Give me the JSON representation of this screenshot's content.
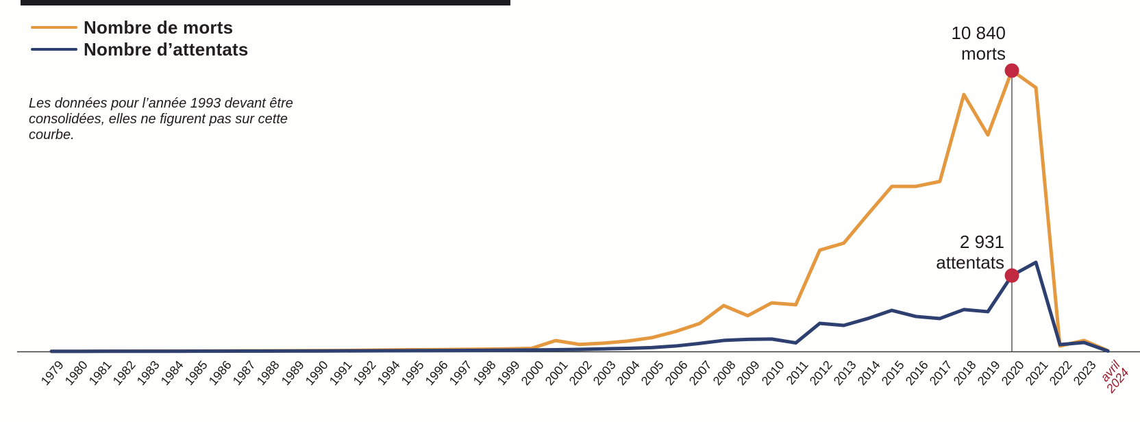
{
  "legend": {
    "items": [
      {
        "label": "Nombre de morts",
        "color": "#E4983F"
      },
      {
        "label": "Nombre d’attentats",
        "color": "#2E4070"
      }
    ]
  },
  "note": {
    "text": "Les données pour l’année 1993 devant être\nconsolidées, elles ne figurent pas sur cette\ncourbe."
  },
  "annotations": {
    "morts": {
      "text": "10 840\nmorts"
    },
    "attentats": {
      "text": "2 931\nattentats"
    }
  },
  "chart_data": {
    "type": "line",
    "title": "",
    "xlabel": "",
    "ylabel": "",
    "ylim": [
      0,
      10840
    ],
    "grid": false,
    "legend_position": "top-left",
    "note": "Les données pour l’année 1993 devant être consolidées, elles ne figurent pas sur cette courbe.",
    "categories": [
      "1979",
      "1980",
      "1981",
      "1982",
      "1983",
      "1984",
      "1985",
      "1986",
      "1987",
      "1988",
      "1989",
      "1990",
      "1991",
      "1992",
      "1994",
      "1995",
      "1996",
      "1997",
      "1998",
      "1999",
      "2000",
      "2001",
      "2002",
      "2003",
      "2004",
      "2005",
      "2006",
      "2007",
      "2008",
      "2009",
      "2010",
      "2011",
      "2012",
      "2013",
      "2014",
      "2015",
      "2016",
      "2017",
      "2018",
      "2019",
      "2020",
      "2021",
      "2022",
      "2023",
      "avril\n2024"
    ],
    "last_tick_color": "#9A1B2F",
    "axis_color": "#3a3a3a",
    "highlight": {
      "category": "2020",
      "dot_color": "#C02940",
      "line_color": "#4d4d4d",
      "morts_value": 10840,
      "attentats_value": 2931,
      "morts_label": "10 840 morts",
      "attentats_label": "2 931 attentats"
    },
    "series": [
      {
        "name": "Nombre de morts",
        "color": "#E4983F",
        "values": [
          5,
          8,
          10,
          12,
          15,
          15,
          18,
          20,
          22,
          25,
          28,
          32,
          38,
          45,
          55,
          65,
          70,
          78,
          85,
          100,
          120,
          420,
          270,
          320,
          400,
          530,
          770,
          1080,
          1770,
          1380,
          1875,
          1800,
          3910,
          4180,
          5290,
          6370,
          6370,
          6560,
          9915,
          8355,
          10840,
          10180,
          210,
          425,
          30
        ]
      },
      {
        "name": "Nombre d’attentats",
        "color": "#2E4070",
        "values": [
          3,
          4,
          5,
          6,
          8,
          8,
          10,
          10,
          12,
          14,
          15,
          18,
          20,
          24,
          28,
          30,
          34,
          38,
          42,
          48,
          55,
          65,
          80,
          100,
          120,
          150,
          210,
          310,
          425,
          465,
          480,
          330,
          1085,
          1005,
          1270,
          1585,
          1350,
          1270,
          1615,
          1535,
          2931,
          3440,
          265,
          345,
          15
        ]
      }
    ]
  }
}
